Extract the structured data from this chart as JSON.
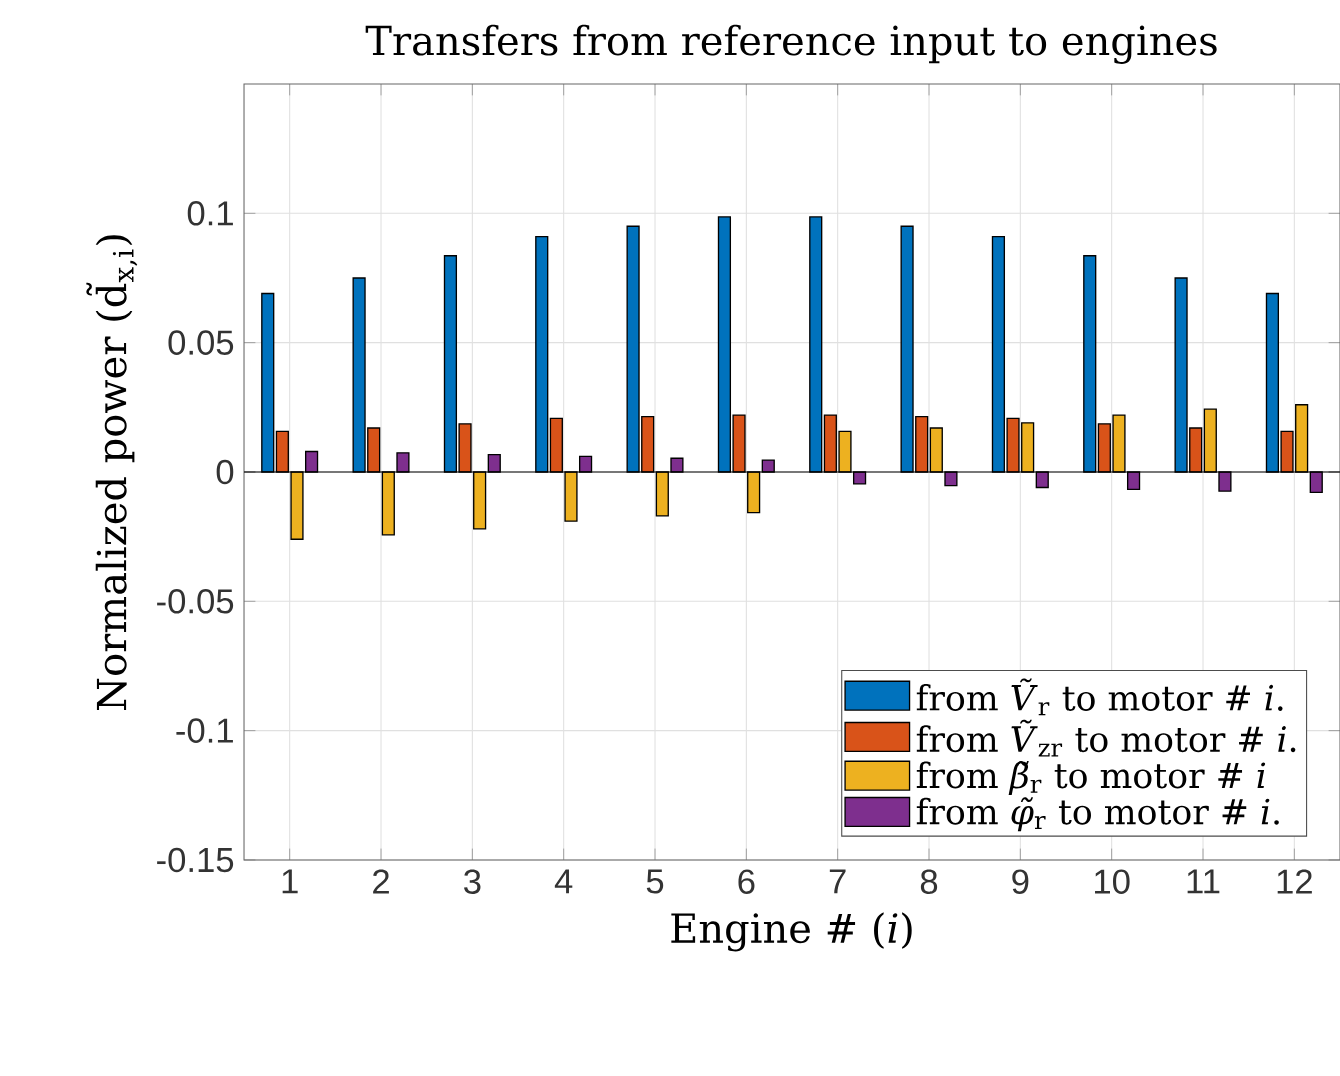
{
  "chart_data": {
    "type": "bar",
    "title": "Transfers from reference input to engines",
    "xlabel": "Engine # (*i*)",
    "ylabel": "Normalized power (d̃$_{x,i}$)",
    "categories": [
      "1",
      "2",
      "3",
      "4",
      "5",
      "6",
      "7",
      "8",
      "9",
      "10",
      "11",
      "12"
    ],
    "series": [
      {
        "name": "from *Ṽ*$_{r}$ to motor # *i*.",
        "color": "#0072bd",
        "values": [
          0.069,
          0.075,
          0.0836,
          0.091,
          0.095,
          0.0986,
          0.0986,
          0.095,
          0.091,
          0.0836,
          0.075,
          0.069
        ]
      },
      {
        "name": "from *Ṽ*$_{zr}$ to motor # *i*.",
        "color": "#d95319",
        "values": [
          0.0157,
          0.017,
          0.0186,
          0.0207,
          0.0214,
          0.022,
          0.022,
          0.0214,
          0.0207,
          0.0186,
          0.017,
          0.0157
        ]
      },
      {
        "name": "from *β̃*$_{r}$ to motor # *i*",
        "color": "#edb120",
        "values": [
          -0.026,
          -0.0243,
          -0.022,
          -0.019,
          -0.017,
          -0.0157,
          0.0157,
          0.017,
          0.019,
          0.022,
          0.0243,
          0.026
        ]
      },
      {
        "name": "from *φ̃*$_{r}$ to motor # *i*.",
        "color": "#7e2f8e",
        "values": [
          0.0079,
          0.0074,
          0.0067,
          0.006,
          0.0053,
          0.0046,
          -0.0046,
          -0.0053,
          -0.006,
          -0.0067,
          -0.0074,
          -0.0079
        ]
      }
    ],
    "ylim": [
      -0.15,
      0.15
    ],
    "yticks": [
      -0.15,
      -0.1,
      -0.05,
      0,
      0.05,
      0.1
    ],
    "grid": true,
    "legend": "bottom right"
  }
}
